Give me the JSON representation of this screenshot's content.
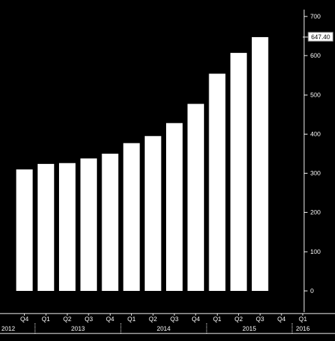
{
  "chart_data": {
    "type": "bar",
    "categories": [
      "Q4 2012",
      "Q1 2013",
      "Q2 2013",
      "Q3 2013",
      "Q4 2013",
      "Q1 2014",
      "Q2 2014",
      "Q3 2014",
      "Q4 2014",
      "Q1 2015",
      "Q2 2015",
      "Q3 2015",
      "Q4 2015",
      "Q1 2016"
    ],
    "values": [
      310,
      324,
      326,
      338,
      350,
      377,
      395,
      428,
      477,
      554,
      607,
      647.4,
      null,
      null
    ],
    "x_tick_labels": [
      "Q4",
      "Q1",
      "Q2",
      "Q3",
      "Q4",
      "Q1",
      "Q2",
      "Q3",
      "Q4",
      "Q1",
      "Q2",
      "Q3",
      "Q4",
      "Q1"
    ],
    "year_labels": [
      {
        "label": "2012",
        "start": 0,
        "span": 1
      },
      {
        "label": "2013",
        "start": 1,
        "span": 4
      },
      {
        "label": "2014",
        "start": 5,
        "span": 4
      },
      {
        "label": "2015",
        "start": 9,
        "span": 4
      },
      {
        "label": "2016",
        "start": 13,
        "span": 1
      }
    ],
    "y_ticks": [
      0,
      100,
      200,
      300,
      400,
      500,
      600,
      700
    ],
    "ylim": [
      -20,
      720
    ],
    "last_value_label": "647.40",
    "y_axis_side": "right",
    "grid": false,
    "title": "",
    "xlabel": "",
    "ylabel": ""
  }
}
